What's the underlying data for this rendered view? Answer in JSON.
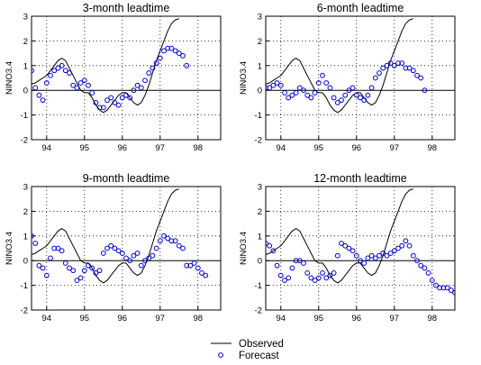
{
  "chart_data": [
    {
      "type": "line",
      "title": "3-month leadtime",
      "ylabel": "NINO3.4",
      "xticks": [
        "94",
        "95",
        "96",
        "97",
        "98"
      ],
      "yticks": [
        "-2",
        "-1",
        "0",
        "1",
        "2",
        "3"
      ],
      "xlim": [
        1993.6,
        1998.6
      ],
      "ylim": [
        -2,
        3
      ],
      "grid": "dotted",
      "series": [
        {
          "name": "Observed",
          "style": "line",
          "color": "#000000",
          "x": [
            1993.6,
            1993.7,
            1993.8,
            1993.9,
            1994.0,
            1994.1,
            1994.2,
            1994.3,
            1994.4,
            1994.5,
            1994.6,
            1994.7,
            1994.8,
            1994.9,
            1995.0,
            1995.1,
            1995.2,
            1995.3,
            1995.4,
            1995.5,
            1995.6,
            1995.7,
            1995.8,
            1995.9,
            1996.0,
            1996.1,
            1996.2,
            1996.3,
            1996.4,
            1996.5,
            1996.6,
            1996.7,
            1996.8,
            1996.9,
            1997.0,
            1997.1,
            1997.2,
            1997.3,
            1997.4,
            1997.5
          ],
          "y": [
            0.25,
            0.3,
            0.4,
            0.5,
            0.6,
            0.8,
            1.0,
            1.2,
            1.3,
            1.2,
            0.9,
            0.6,
            0.3,
            0.0,
            -0.1,
            -0.1,
            -0.3,
            -0.6,
            -0.8,
            -0.9,
            -0.8,
            -0.6,
            -0.4,
            -0.2,
            -0.1,
            -0.1,
            -0.3,
            -0.5,
            -0.6,
            -0.5,
            -0.2,
            0.2,
            0.7,
            1.2,
            1.6,
            2.0,
            2.4,
            2.7,
            2.85,
            2.9
          ]
        },
        {
          "name": "Forecast",
          "style": "markers",
          "color": "#0000cc",
          "x": [
            1993.6,
            1993.7,
            1993.8,
            1993.9,
            1994.0,
            1994.1,
            1994.2,
            1994.3,
            1994.4,
            1994.5,
            1994.6,
            1994.7,
            1994.8,
            1994.9,
            1995.0,
            1995.1,
            1995.2,
            1995.3,
            1995.4,
            1995.5,
            1995.6,
            1995.7,
            1995.8,
            1995.9,
            1996.0,
            1996.1,
            1996.2,
            1996.3,
            1996.4,
            1996.5,
            1996.6,
            1996.7,
            1996.8,
            1996.9,
            1997.0,
            1997.1,
            1997.2,
            1997.3,
            1997.4,
            1997.5,
            1997.6,
            1997.7
          ],
          "y": [
            0.8,
            0.1,
            -0.2,
            -0.4,
            0.3,
            0.6,
            0.8,
            0.9,
            1.0,
            0.8,
            0.7,
            0.2,
            0.1,
            0.3,
            0.4,
            0.2,
            -0.1,
            -0.5,
            -0.7,
            -0.7,
            -0.4,
            -0.3,
            -0.5,
            -0.6,
            -0.3,
            -0.2,
            -0.3,
            0.0,
            0.2,
            0.1,
            0.4,
            0.7,
            0.9,
            1.1,
            1.3,
            1.6,
            1.7,
            1.7,
            1.6,
            1.5,
            1.4,
            1.0
          ]
        }
      ]
    },
    {
      "type": "line",
      "title": "6-month leadtime",
      "ylabel": "NINO3.4",
      "xticks": [
        "94",
        "95",
        "96",
        "97",
        "98"
      ],
      "yticks": [
        "-2",
        "-1",
        "0",
        "1",
        "2",
        "3"
      ],
      "xlim": [
        1993.6,
        1998.6
      ],
      "ylim": [
        -2,
        3
      ],
      "grid": "dotted",
      "series": [
        {
          "name": "Observed",
          "style": "line",
          "color": "#000000",
          "x": [
            1993.6,
            1993.7,
            1993.8,
            1993.9,
            1994.0,
            1994.1,
            1994.2,
            1994.3,
            1994.4,
            1994.5,
            1994.6,
            1994.7,
            1994.8,
            1994.9,
            1995.0,
            1995.1,
            1995.2,
            1995.3,
            1995.4,
            1995.5,
            1995.6,
            1995.7,
            1995.8,
            1995.9,
            1996.0,
            1996.1,
            1996.2,
            1996.3,
            1996.4,
            1996.5,
            1996.6,
            1996.7,
            1996.8,
            1996.9,
            1997.0,
            1997.1,
            1997.2,
            1997.3,
            1997.4,
            1997.5
          ],
          "y": [
            0.25,
            0.3,
            0.4,
            0.5,
            0.6,
            0.8,
            1.0,
            1.2,
            1.3,
            1.2,
            0.9,
            0.6,
            0.3,
            0.0,
            -0.1,
            -0.1,
            -0.3,
            -0.6,
            -0.8,
            -0.9,
            -0.8,
            -0.6,
            -0.4,
            -0.2,
            -0.1,
            -0.1,
            -0.3,
            -0.5,
            -0.6,
            -0.5,
            -0.2,
            0.2,
            0.7,
            1.2,
            1.6,
            2.0,
            2.4,
            2.7,
            2.85,
            2.9
          ]
        },
        {
          "name": "Forecast",
          "style": "markers",
          "color": "#0000cc",
          "x": [
            1993.6,
            1993.7,
            1993.8,
            1993.9,
            1994.0,
            1994.1,
            1994.2,
            1994.3,
            1994.4,
            1994.5,
            1994.6,
            1994.7,
            1994.8,
            1994.9,
            1995.0,
            1995.1,
            1995.2,
            1995.3,
            1995.4,
            1995.5,
            1995.6,
            1995.7,
            1995.8,
            1995.9,
            1996.0,
            1996.1,
            1996.2,
            1996.3,
            1996.4,
            1996.5,
            1996.6,
            1996.7,
            1996.8,
            1996.9,
            1997.0,
            1997.1,
            1997.2,
            1997.3,
            1997.4,
            1997.5,
            1997.6,
            1997.7,
            1997.8
          ],
          "y": [
            0.1,
            0.1,
            0.2,
            0.3,
            0.2,
            -0.1,
            -0.3,
            -0.2,
            -0.1,
            0.1,
            0.0,
            -0.2,
            -0.3,
            -0.1,
            0.3,
            0.6,
            0.3,
            0.1,
            -0.3,
            -0.5,
            -0.4,
            -0.2,
            0.0,
            0.1,
            -0.2,
            -0.3,
            -0.4,
            -0.2,
            0.1,
            0.5,
            0.7,
            0.9,
            1.0,
            1.1,
            1.0,
            1.1,
            1.1,
            0.9,
            0.9,
            0.8,
            0.6,
            0.5,
            0.0
          ]
        }
      ]
    },
    {
      "type": "line",
      "title": "9-month leadtime",
      "ylabel": "NINO3.4",
      "xticks": [
        "94",
        "95",
        "96",
        "97",
        "98"
      ],
      "yticks": [
        "-2",
        "-1",
        "0",
        "1",
        "2",
        "3"
      ],
      "xlim": [
        1993.6,
        1998.6
      ],
      "ylim": [
        -2,
        3
      ],
      "grid": "dotted",
      "series": [
        {
          "name": "Observed",
          "style": "line",
          "color": "#000000",
          "x": [
            1993.6,
            1993.7,
            1993.8,
            1993.9,
            1994.0,
            1994.1,
            1994.2,
            1994.3,
            1994.4,
            1994.5,
            1994.6,
            1994.7,
            1994.8,
            1994.9,
            1995.0,
            1995.1,
            1995.2,
            1995.3,
            1995.4,
            1995.5,
            1995.6,
            1995.7,
            1995.8,
            1995.9,
            1996.0,
            1996.1,
            1996.2,
            1996.3,
            1996.4,
            1996.5,
            1996.6,
            1996.7,
            1996.8,
            1996.9,
            1997.0,
            1997.1,
            1997.2,
            1997.3,
            1997.4,
            1997.5
          ],
          "y": [
            0.25,
            0.3,
            0.4,
            0.5,
            0.6,
            0.8,
            1.0,
            1.2,
            1.3,
            1.2,
            0.9,
            0.6,
            0.3,
            0.0,
            -0.1,
            -0.1,
            -0.3,
            -0.6,
            -0.8,
            -0.9,
            -0.8,
            -0.6,
            -0.4,
            -0.2,
            -0.1,
            -0.1,
            -0.3,
            -0.5,
            -0.6,
            -0.5,
            -0.2,
            0.2,
            0.7,
            1.2,
            1.6,
            2.0,
            2.4,
            2.7,
            2.85,
            2.9
          ]
        },
        {
          "name": "Forecast",
          "style": "markers",
          "color": "#0000cc",
          "x": [
            1993.6,
            1993.7,
            1993.8,
            1993.9,
            1994.0,
            1994.1,
            1994.2,
            1994.3,
            1994.4,
            1994.5,
            1994.6,
            1994.7,
            1994.8,
            1994.9,
            1995.0,
            1995.1,
            1995.2,
            1995.3,
            1995.4,
            1995.5,
            1995.6,
            1995.7,
            1995.8,
            1995.9,
            1996.0,
            1996.1,
            1996.2,
            1996.3,
            1996.4,
            1996.5,
            1996.6,
            1996.7,
            1996.8,
            1996.9,
            1997.0,
            1997.1,
            1997.2,
            1997.3,
            1997.4,
            1997.5,
            1997.6,
            1997.7,
            1997.8,
            1997.9,
            1998.0,
            1998.1,
            1998.2
          ],
          "y": [
            1.0,
            0.7,
            -0.2,
            -0.3,
            -0.6,
            0.1,
            0.5,
            0.5,
            0.4,
            -0.1,
            -0.3,
            -0.4,
            -0.8,
            -0.7,
            -0.4,
            -0.2,
            -0.3,
            -0.5,
            -0.4,
            0.3,
            0.5,
            0.6,
            0.5,
            0.4,
            0.3,
            0.1,
            0.0,
            0.2,
            0.3,
            -0.2,
            0.0,
            0.1,
            0.2,
            0.5,
            0.8,
            1.0,
            0.9,
            0.8,
            0.8,
            0.6,
            0.5,
            -0.2,
            -0.2,
            -0.1,
            -0.3,
            -0.5,
            -0.6
          ]
        }
      ]
    },
    {
      "type": "line",
      "title": "12-month leadtime",
      "ylabel": "NINO3.4",
      "xticks": [
        "94",
        "95",
        "96",
        "97",
        "98"
      ],
      "yticks": [
        "-2",
        "-1",
        "0",
        "1",
        "2",
        "3"
      ],
      "xlim": [
        1993.6,
        1998.6
      ],
      "ylim": [
        -2,
        3
      ],
      "grid": "dotted",
      "series": [
        {
          "name": "Observed",
          "style": "line",
          "color": "#000000",
          "x": [
            1993.6,
            1993.7,
            1993.8,
            1993.9,
            1994.0,
            1994.1,
            1994.2,
            1994.3,
            1994.4,
            1994.5,
            1994.6,
            1994.7,
            1994.8,
            1994.9,
            1995.0,
            1995.1,
            1995.2,
            1995.3,
            1995.4,
            1995.5,
            1995.6,
            1995.7,
            1995.8,
            1995.9,
            1996.0,
            1996.1,
            1996.2,
            1996.3,
            1996.4,
            1996.5,
            1996.6,
            1996.7,
            1996.8,
            1996.9,
            1997.0,
            1997.1,
            1997.2,
            1997.3,
            1997.4,
            1997.5
          ],
          "y": [
            0.25,
            0.3,
            0.4,
            0.5,
            0.6,
            0.8,
            1.0,
            1.2,
            1.3,
            1.2,
            0.9,
            0.6,
            0.3,
            0.0,
            -0.1,
            -0.1,
            -0.3,
            -0.6,
            -0.8,
            -0.9,
            -0.8,
            -0.6,
            -0.4,
            -0.2,
            -0.1,
            -0.1,
            -0.3,
            -0.5,
            -0.6,
            -0.5,
            -0.2,
            0.2,
            0.7,
            1.2,
            1.6,
            2.0,
            2.4,
            2.7,
            2.85,
            2.9
          ]
        },
        {
          "name": "Forecast",
          "style": "markers",
          "color": "#0000cc",
          "x": [
            1993.6,
            1993.7,
            1993.8,
            1993.9,
            1994.0,
            1994.1,
            1994.2,
            1994.3,
            1994.4,
            1994.5,
            1994.6,
            1994.7,
            1994.8,
            1994.9,
            1995.0,
            1995.1,
            1995.2,
            1995.3,
            1995.4,
            1995.5,
            1995.6,
            1995.7,
            1995.8,
            1995.9,
            1996.0,
            1996.1,
            1996.2,
            1996.3,
            1996.4,
            1996.5,
            1996.6,
            1996.7,
            1996.8,
            1996.9,
            1997.0,
            1997.1,
            1997.2,
            1997.3,
            1997.4,
            1997.5,
            1997.6,
            1997.7,
            1997.8,
            1997.9,
            1998.0,
            1998.1,
            1998.2,
            1998.3,
            1998.4,
            1998.5,
            1998.6
          ],
          "y": [
            0.7,
            0.6,
            0.4,
            -0.2,
            -0.6,
            -0.8,
            -0.7,
            -0.3,
            0.0,
            0.0,
            -0.1,
            -0.5,
            -0.7,
            -0.8,
            -0.7,
            -0.5,
            -0.7,
            -0.6,
            -0.5,
            0.2,
            0.7,
            0.6,
            0.5,
            0.4,
            0.2,
            0.0,
            -0.1,
            0.1,
            0.2,
            0.1,
            0.2,
            0.3,
            0.2,
            0.3,
            0.4,
            0.5,
            0.6,
            0.8,
            0.6,
            0.2,
            0.0,
            -0.2,
            -0.3,
            -0.5,
            -0.8,
            -1.0,
            -1.1,
            -1.1,
            -1.1,
            -1.2,
            -1.3
          ]
        }
      ]
    }
  ],
  "legend": {
    "position": "bottom-center",
    "observed_label": "Observed",
    "forecast_label": "Forecast"
  }
}
